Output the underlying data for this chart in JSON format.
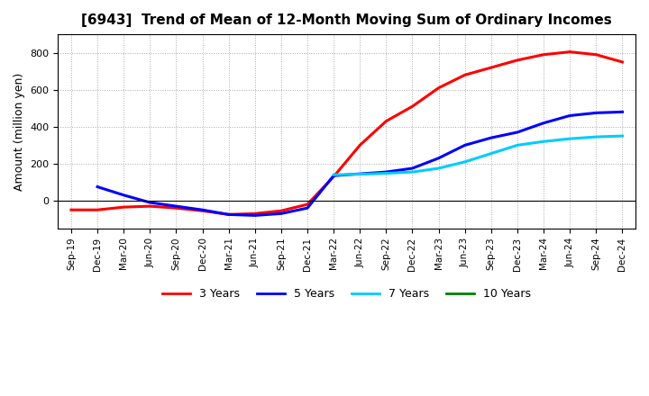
{
  "title": "[6943]  Trend of Mean of 12-Month Moving Sum of Ordinary Incomes",
  "ylabel": "Amount (million yen)",
  "background_color": "#ffffff",
  "grid_color": "#aaaaaa",
  "x_labels": [
    "Sep-19",
    "Dec-19",
    "Mar-20",
    "Jun-20",
    "Sep-20",
    "Dec-20",
    "Mar-21",
    "Jun-21",
    "Sep-21",
    "Dec-21",
    "Mar-22",
    "Jun-22",
    "Sep-22",
    "Dec-22",
    "Mar-23",
    "Jun-23",
    "Sep-23",
    "Dec-23",
    "Mar-24",
    "Jun-24",
    "Sep-24",
    "Dec-24"
  ],
  "series": {
    "3 Years": {
      "color": "#ff0000",
      "data_indices": [
        0,
        1,
        2,
        3,
        4,
        5,
        6,
        7,
        8,
        9,
        10,
        11,
        12,
        13,
        14,
        15,
        16,
        17,
        18,
        19,
        20,
        21
      ],
      "values": [
        -50,
        -50,
        -35,
        -30,
        -40,
        -55,
        -75,
        -70,
        -55,
        -20,
        130,
        300,
        430,
        510,
        610,
        680,
        720,
        760,
        790,
        805,
        790,
        750
      ]
    },
    "5 Years": {
      "color": "#0000ff",
      "data_indices": [
        1,
        2,
        3,
        4,
        5,
        6,
        7,
        8,
        9,
        10,
        11,
        12,
        13,
        14,
        15,
        16,
        17,
        18,
        19,
        20,
        21
      ],
      "values": [
        75,
        30,
        -10,
        -30,
        -50,
        -75,
        -80,
        -70,
        -40,
        135,
        145,
        155,
        175,
        230,
        300,
        340,
        370,
        420,
        460,
        475,
        480
      ]
    },
    "7 Years": {
      "color": "#00ccff",
      "data_indices": [
        10,
        11,
        12,
        13,
        14,
        15,
        16,
        17,
        18,
        19,
        20,
        21
      ],
      "values": [
        140,
        143,
        148,
        155,
        175,
        210,
        255,
        300,
        320,
        335,
        345,
        350
      ]
    },
    "10 Years": {
      "color": "#008000",
      "data_indices": [],
      "values": []
    }
  },
  "series_order": [
    "3 Years",
    "5 Years",
    "7 Years",
    "10 Years"
  ],
  "legend_labels": [
    "3 Years",
    "5 Years",
    "7 Years",
    "10 Years"
  ],
  "legend_colors": [
    "#ff0000",
    "#0000ff",
    "#00ccff",
    "#008000"
  ]
}
